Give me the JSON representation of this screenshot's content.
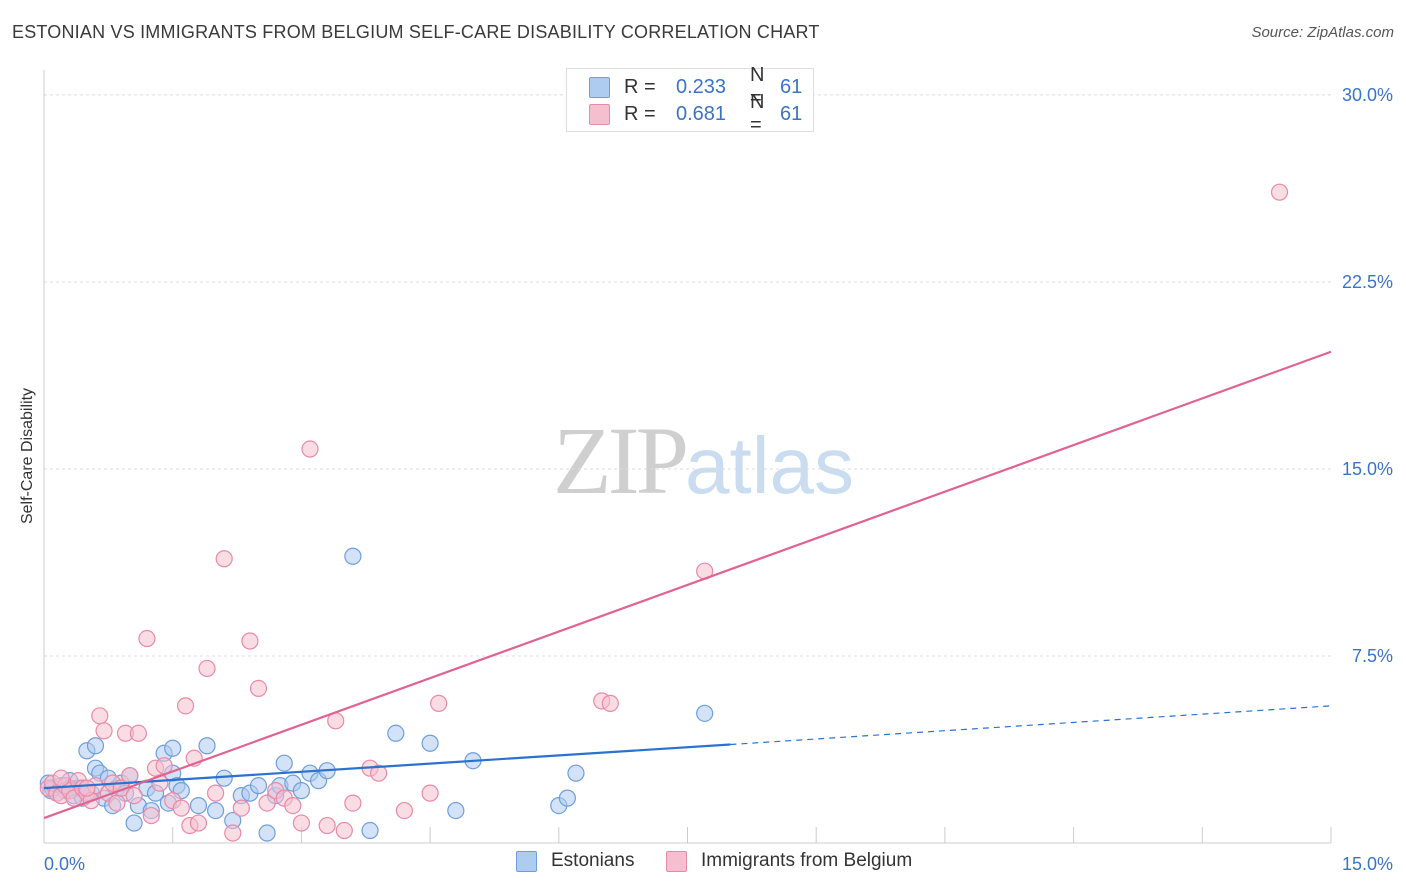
{
  "header": {
    "title": "ESTONIAN VS IMMIGRANTS FROM BELGIUM SELF-CARE DISABILITY CORRELATION CHART",
    "source": "Source: ZipAtlas.com"
  },
  "watermark": {
    "zip": "ZIP",
    "atlas": "atlas"
  },
  "legend_top": {
    "rows": [
      {
        "r_label": "R =",
        "r_value": "0.233",
        "n_label": "N =",
        "n_value": "61"
      },
      {
        "r_label": "R =",
        "r_value": "0.681",
        "n_label": "N =",
        "n_value": "61"
      }
    ]
  },
  "legend_bottom": {
    "items": [
      {
        "label": "Estonians"
      },
      {
        "label": "Immigrants from Belgium"
      }
    ]
  },
  "colors": {
    "blue_fill": "#aecbf0",
    "blue_stroke": "#6e9fdc",
    "blue_line": "#2a72d0",
    "pink_fill": "#f6bfd0",
    "pink_stroke": "#e98aa8",
    "pink_line": "#e0648f",
    "grid": "#dcdcdc",
    "tick_text": "#3a74c8"
  },
  "chart_data": {
    "type": "scatter",
    "title": "ESTONIAN VS IMMIGRANTS FROM BELGIUM SELF-CARE DISABILITY CORRELATION CHART",
    "xlabel": "",
    "ylabel": "Self-Care Disability",
    "xlim": [
      0,
      15
    ],
    "ylim": [
      0,
      31
    ],
    "x_tick_labels": [
      "0.0%",
      "15.0%"
    ],
    "y_ticks": [
      7.5,
      15.0,
      22.5,
      30.0
    ],
    "y_tick_labels": [
      "7.5%",
      "15.0%",
      "22.5%",
      "30.0%"
    ],
    "grid": "horizontal dashed",
    "legend_position": "top-center",
    "series": [
      {
        "name": "Estonians",
        "r": 0.233,
        "n": 61,
        "trend": {
          "x": [
            0.0,
            8.0
          ],
          "y": [
            2.2,
            3.95
          ],
          "dashed_to": [
            15.0,
            5.5
          ]
        },
        "points": [
          [
            0.05,
            2.4
          ],
          [
            0.08,
            2.1
          ],
          [
            0.1,
            2.2
          ],
          [
            0.15,
            2.0
          ],
          [
            0.2,
            2.3
          ],
          [
            0.25,
            2.1
          ],
          [
            0.3,
            2.5
          ],
          [
            0.35,
            1.9
          ],
          [
            0.4,
            2.2
          ],
          [
            0.45,
            1.8
          ],
          [
            0.5,
            3.7
          ],
          [
            0.55,
            2.0
          ],
          [
            0.6,
            3.0
          ],
          [
            0.65,
            2.8
          ],
          [
            0.7,
            1.8
          ],
          [
            0.75,
            2.6
          ],
          [
            0.8,
            1.5
          ],
          [
            0.85,
            2.2
          ],
          [
            0.9,
            2.4
          ],
          [
            0.95,
            2.0
          ],
          [
            1.0,
            2.7
          ],
          [
            1.05,
            0.8
          ],
          [
            1.1,
            1.5
          ],
          [
            1.2,
            2.2
          ],
          [
            1.25,
            1.3
          ],
          [
            1.3,
            2.0
          ],
          [
            1.4,
            3.6
          ],
          [
            1.45,
            1.6
          ],
          [
            1.5,
            2.8
          ],
          [
            1.55,
            2.3
          ],
          [
            1.6,
            2.1
          ],
          [
            1.8,
            1.5
          ],
          [
            1.9,
            3.9
          ],
          [
            2.0,
            1.3
          ],
          [
            2.1,
            2.6
          ],
          [
            2.2,
            0.9
          ],
          [
            2.3,
            1.9
          ],
          [
            2.4,
            2.0
          ],
          [
            2.5,
            2.3
          ],
          [
            2.6,
            0.4
          ],
          [
            2.7,
            1.9
          ],
          [
            2.75,
            2.3
          ],
          [
            2.8,
            3.2
          ],
          [
            2.9,
            2.4
          ],
          [
            3.0,
            2.1
          ],
          [
            3.1,
            2.8
          ],
          [
            3.2,
            2.5
          ],
          [
            3.3,
            2.9
          ],
          [
            3.6,
            11.5
          ],
          [
            3.8,
            0.5
          ],
          [
            4.1,
            4.4
          ],
          [
            4.5,
            4.0
          ],
          [
            4.8,
            1.3
          ],
          [
            5.0,
            3.3
          ],
          [
            6.0,
            1.5
          ],
          [
            6.1,
            1.8
          ],
          [
            6.2,
            2.8
          ],
          [
            0.6,
            3.9
          ],
          [
            1.5,
            3.8
          ],
          [
            0.3,
            2.2
          ],
          [
            7.7,
            5.2
          ]
        ]
      },
      {
        "name": "Immigrants from Belgium",
        "r": 0.681,
        "n": 61,
        "trend": {
          "x": [
            0.0,
            15.0
          ],
          "y": [
            1.0,
            19.7
          ]
        },
        "points": [
          [
            0.05,
            2.2
          ],
          [
            0.1,
            2.4
          ],
          [
            0.15,
            2.0
          ],
          [
            0.2,
            1.9
          ],
          [
            0.25,
            2.3
          ],
          [
            0.3,
            2.1
          ],
          [
            0.35,
            1.8
          ],
          [
            0.4,
            2.5
          ],
          [
            0.45,
            2.2
          ],
          [
            0.5,
            2.0
          ],
          [
            0.55,
            1.7
          ],
          [
            0.6,
            2.3
          ],
          [
            0.65,
            5.1
          ],
          [
            0.7,
            4.5
          ],
          [
            0.75,
            2.0
          ],
          [
            0.8,
            2.4
          ],
          [
            0.85,
            1.6
          ],
          [
            0.9,
            2.2
          ],
          [
            0.95,
            4.4
          ],
          [
            1.0,
            2.7
          ],
          [
            1.05,
            1.9
          ],
          [
            1.1,
            4.4
          ],
          [
            1.2,
            8.2
          ],
          [
            1.25,
            1.1
          ],
          [
            1.3,
            3.0
          ],
          [
            1.35,
            2.4
          ],
          [
            1.4,
            3.1
          ],
          [
            1.5,
            1.7
          ],
          [
            1.6,
            1.4
          ],
          [
            1.65,
            5.5
          ],
          [
            1.7,
            0.7
          ],
          [
            1.75,
            3.4
          ],
          [
            1.8,
            0.8
          ],
          [
            1.9,
            7.0
          ],
          [
            2.0,
            2.0
          ],
          [
            2.1,
            11.4
          ],
          [
            2.2,
            0.4
          ],
          [
            2.3,
            1.4
          ],
          [
            2.4,
            8.1
          ],
          [
            2.5,
            6.2
          ],
          [
            2.6,
            1.6
          ],
          [
            2.7,
            2.1
          ],
          [
            2.8,
            1.8
          ],
          [
            2.9,
            1.5
          ],
          [
            3.0,
            0.8
          ],
          [
            3.1,
            15.8
          ],
          [
            3.3,
            0.7
          ],
          [
            3.4,
            4.9
          ],
          [
            3.5,
            0.5
          ],
          [
            3.6,
            1.6
          ],
          [
            3.8,
            3.0
          ],
          [
            3.9,
            2.8
          ],
          [
            4.2,
            1.3
          ],
          [
            4.5,
            2.0
          ],
          [
            4.6,
            5.6
          ],
          [
            6.5,
            5.7
          ],
          [
            6.6,
            5.6
          ],
          [
            7.7,
            10.9
          ],
          [
            14.4,
            26.1
          ],
          [
            0.2,
            2.6
          ],
          [
            0.5,
            2.2
          ]
        ]
      }
    ]
  }
}
